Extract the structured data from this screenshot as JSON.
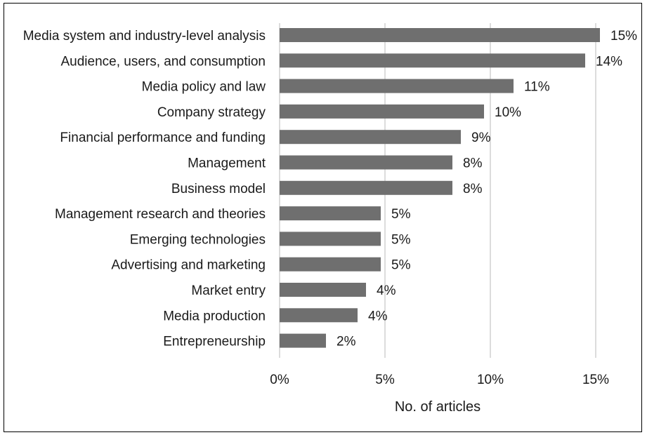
{
  "chart_data": {
    "type": "bar",
    "orientation": "horizontal",
    "categories": [
      "Media system and industry-level analysis",
      "Audience, users, and consumption",
      "Media policy and law",
      "Company strategy",
      "Financial performance and funding",
      "Management ",
      "Business model",
      "Management research and theories",
      "Emerging technologies",
      "Advertising and marketing",
      "Market entry",
      "Media production",
      "Entrepreneurship"
    ],
    "values": [
      15.2,
      14.5,
      11.1,
      9.7,
      8.6,
      8.2,
      8.2,
      4.8,
      4.8,
      4.8,
      4.1,
      3.7,
      2.2
    ],
    "value_labels": [
      "15%",
      "14%",
      "11%",
      "10%",
      "9%",
      "8%",
      "8%",
      "5%",
      "5%",
      "5%",
      "4%",
      "4%",
      "2%"
    ],
    "xlim": [
      0,
      15
    ],
    "xticks": [
      0,
      5,
      10,
      15
    ],
    "xtick_labels": [
      "0%",
      "5%",
      "10%",
      "15%"
    ],
    "xlabel": "No. of articles",
    "ylabel": "",
    "title": "",
    "grid": "vertical",
    "legend": "none",
    "bar_color": "#6f6f6f",
    "grid_color": "#d0d0d0"
  }
}
